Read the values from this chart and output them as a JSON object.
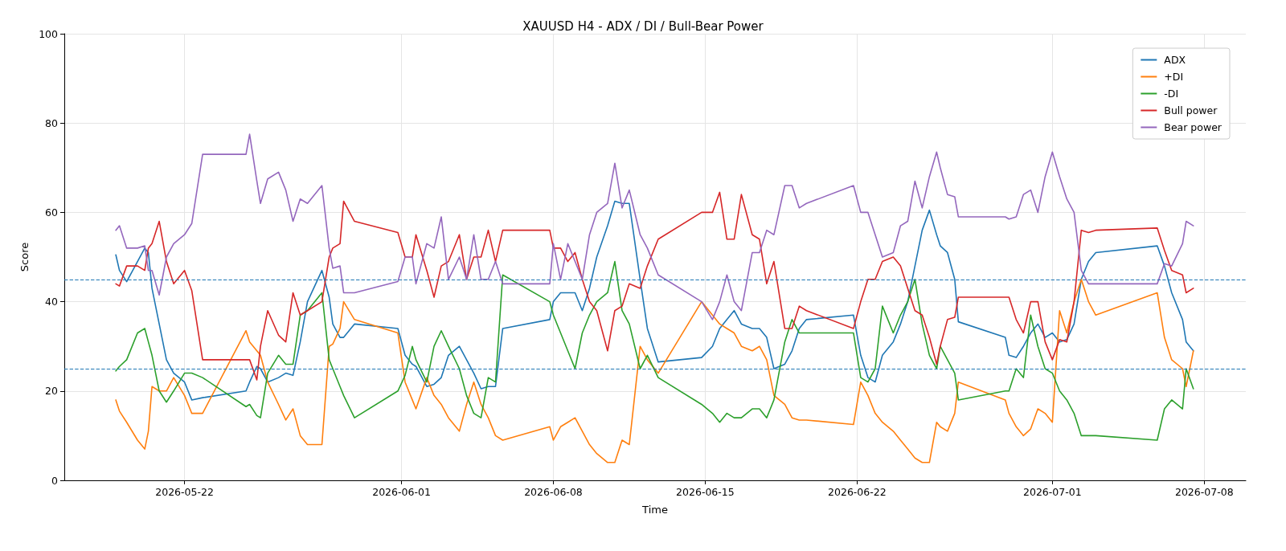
{
  "chart_data": {
    "type": "line",
    "title": "XAUUSD H4 - ADX / DI / Bull-Bear Power",
    "xlabel": "Time",
    "ylabel": "Score",
    "x": [
      "2026-05-18T20:00",
      "2026-05-19T00:00",
      "2026-05-19T08:00",
      "2026-05-19T20:00",
      "2026-05-20T04:00",
      "2026-05-20T08:00",
      "2026-05-20T12:00",
      "2026-05-20T20:00",
      "2026-05-21T04:00",
      "2026-05-21T12:00",
      "2026-05-22T00:00",
      "2026-05-22T08:00",
      "2026-05-22T20:00",
      "2026-05-24T20:00",
      "2026-05-25T00:00",
      "2026-05-25T08:00",
      "2026-05-25T12:00",
      "2026-05-25T20:00",
      "2026-05-26T08:00",
      "2026-05-26T16:00",
      "2026-05-27T00:00",
      "2026-05-27T08:00",
      "2026-05-27T16:00",
      "2026-05-28T08:00",
      "2026-05-28T16:00",
      "2026-05-28T20:00",
      "2026-05-29T04:00",
      "2026-05-29T08:00",
      "2026-05-29T20:00",
      "2026-05-31T20:00",
      "2026-06-01T04:00",
      "2026-06-01T12:00",
      "2026-06-01T16:00",
      "2026-06-02T04:00",
      "2026-06-02T12:00",
      "2026-06-02T20:00",
      "2026-06-03T04:00",
      "2026-06-03T16:00",
      "2026-06-04T00:00",
      "2026-06-04T08:00",
      "2026-06-04T16:00",
      "2026-06-05T00:00",
      "2026-06-05T08:00",
      "2026-06-05T16:00",
      "2026-06-07T20:00",
      "2026-06-08T00:00",
      "2026-06-08T08:00",
      "2026-06-08T16:00",
      "2026-06-09T00:00",
      "2026-06-09T08:00",
      "2026-06-09T16:00",
      "2026-06-10T00:00",
      "2026-06-10T12:00",
      "2026-06-10T20:00",
      "2026-06-11T04:00",
      "2026-06-11T12:00",
      "2026-06-12T00:00",
      "2026-06-12T08:00",
      "2026-06-12T20:00",
      "2026-06-14T20:00",
      "2026-06-15T08:00",
      "2026-06-15T16:00",
      "2026-06-16T00:00",
      "2026-06-16T08:00",
      "2026-06-16T16:00",
      "2026-06-17T04:00",
      "2026-06-17T12:00",
      "2026-06-17T20:00",
      "2026-06-18T04:00",
      "2026-06-18T16:00",
      "2026-06-19T00:00",
      "2026-06-19T08:00",
      "2026-06-19T16:00",
      "2026-06-21T20:00",
      "2026-06-22T04:00",
      "2026-06-22T12:00",
      "2026-06-22T20:00",
      "2026-06-23T04:00",
      "2026-06-23T16:00",
      "2026-06-24T00:00",
      "2026-06-24T08:00",
      "2026-06-24T16:00",
      "2026-06-25T00:00",
      "2026-06-25T08:00",
      "2026-06-25T16:00",
      "2026-06-25T20:00",
      "2026-06-26T04:00",
      "2026-06-26T12:00",
      "2026-06-26T16:00",
      "2026-06-28T20:00",
      "2026-06-29T00:00",
      "2026-06-29T08:00",
      "2026-06-29T16:00",
      "2026-06-30T00:00",
      "2026-06-30T08:00",
      "2026-06-30T16:00",
      "2026-07-01T00:00",
      "2026-07-01T08:00",
      "2026-07-01T16:00",
      "2026-07-02T00:00",
      "2026-07-02T08:00",
      "2026-07-02T16:00",
      "2026-07-03T00:00",
      "2026-07-05T20:00",
      "2026-07-06T04:00",
      "2026-07-06T12:00",
      "2026-07-07T00:00",
      "2026-07-07T04:00",
      "2026-07-07T12:00"
    ],
    "series": [
      {
        "name": "ADX",
        "color": "#1f77b4",
        "values": [
          50.5,
          47,
          44.5,
          49,
          52,
          51,
          43,
          35,
          27,
          24,
          22,
          18,
          18.5,
          20,
          22,
          25.5,
          25,
          22,
          23,
          24,
          23.5,
          31,
          40,
          47,
          41,
          35,
          32,
          32,
          35,
          34,
          28,
          26,
          25.5,
          21,
          21.5,
          23,
          28,
          30,
          27,
          24,
          20.5,
          21,
          21,
          34,
          36,
          40,
          42,
          42,
          42,
          38,
          43,
          50,
          57,
          62.5,
          62,
          62,
          45,
          34,
          26.5,
          27.5,
          30,
          34,
          36,
          38,
          35,
          34,
          34,
          32,
          25,
          26,
          29,
          34,
          36,
          37,
          28,
          23,
          22,
          28,
          31,
          35,
          40,
          48,
          56,
          60.5,
          55,
          52.5,
          51,
          45,
          35.5,
          32,
          28,
          27.5,
          30,
          33,
          35,
          32,
          33,
          31,
          31.5,
          35,
          45,
          49,
          51,
          52.5,
          48,
          42,
          36,
          31,
          29
        ]
      },
      {
        "name": "+DI",
        "color": "#ff7f0e",
        "values": [
          18,
          15.5,
          13,
          9,
          7,
          11,
          21,
          20,
          20,
          23,
          19,
          15,
          15,
          33.5,
          31,
          29,
          28,
          22,
          17,
          13.5,
          16,
          10,
          8,
          8,
          30,
          30.5,
          34,
          40,
          36,
          33,
          22,
          18,
          16,
          23,
          19,
          17,
          14,
          11,
          17,
          22,
          17,
          14,
          10,
          9,
          12,
          9,
          12,
          13,
          14,
          11,
          8,
          6,
          4,
          4,
          9,
          8,
          30,
          27,
          24,
          40,
          37,
          35,
          34,
          33,
          30,
          29,
          30,
          27,
          19,
          17,
          14,
          13.5,
          13.5,
          12.5,
          22,
          19,
          15,
          13,
          11,
          9,
          7,
          5,
          4,
          4,
          13,
          12,
          11,
          15,
          22,
          18,
          15,
          12,
          10,
          11.5,
          16,
          15,
          13,
          38,
          33,
          40,
          45,
          40,
          37,
          42,
          32,
          27,
          25,
          21,
          29
        ]
      },
      {
        "name": "-DI",
        "color": "#2ca02c",
        "values": [
          24.5,
          25.5,
          27,
          33,
          34,
          31,
          28,
          20,
          17.5,
          20,
          24,
          24,
          23,
          16.5,
          17,
          14.5,
          14,
          24,
          28,
          26,
          26,
          37,
          38,
          42,
          27,
          25,
          21,
          19,
          14,
          20,
          23.5,
          30,
          27,
          22,
          30,
          33.5,
          30,
          25,
          19,
          15,
          14,
          23,
          22,
          46,
          40,
          37,
          33,
          29,
          25,
          33,
          37,
          40,
          42,
          49,
          38,
          35,
          25,
          28,
          23,
          17,
          15,
          13,
          15,
          14,
          14,
          16,
          16,
          14,
          18,
          31,
          36,
          33,
          33,
          33,
          23,
          22,
          25,
          39,
          33,
          37,
          40,
          45,
          35,
          28,
          25,
          30,
          27,
          24,
          18,
          20,
          20,
          25,
          23,
          37,
          30,
          25,
          24,
          20,
          18,
          15,
          10,
          10,
          10,
          9,
          16,
          18,
          16,
          25,
          20.5
        ]
      },
      {
        "name": "Bull power",
        "color": "#d62728",
        "values": [
          44,
          43.5,
          48,
          48,
          47,
          52,
          53,
          58,
          49,
          44,
          47,
          42.5,
          27,
          27,
          27,
          22.5,
          30,
          38,
          32.5,
          31,
          42,
          37,
          38,
          40,
          50,
          52,
          53,
          62.5,
          58,
          55.5,
          50,
          50,
          55,
          47,
          41,
          48,
          49,
          55,
          45,
          50,
          50,
          56,
          49,
          56,
          56,
          52,
          52,
          49,
          51,
          45,
          40,
          38,
          29,
          38,
          39,
          44,
          43,
          48,
          54,
          60,
          60,
          64.5,
          54,
          54,
          64,
          55,
          54,
          44,
          49,
          34,
          34,
          39,
          38,
          34,
          40,
          45,
          45,
          49,
          50,
          48,
          43,
          38,
          37,
          32,
          26,
          30,
          36,
          36.5,
          41,
          41,
          41,
          36,
          33,
          40,
          40,
          31,
          27,
          31.5,
          31,
          40,
          56,
          55.5,
          56,
          56.5,
          51.5,
          47,
          46,
          42,
          43
        ]
      },
      {
        "name": "Bear power",
        "color": "#9467bd",
        "values": [
          56,
          57,
          52,
          52,
          52.5,
          47,
          47,
          41.5,
          50,
          53,
          55,
          57.5,
          73,
          73,
          77.5,
          67,
          62,
          67.5,
          69,
          65,
          58,
          63,
          62,
          66,
          52,
          47.5,
          48,
          42,
          42,
          44.5,
          50,
          50,
          44,
          53,
          52,
          59,
          45,
          50,
          45,
          55,
          45,
          45,
          49,
          44,
          44,
          53,
          45,
          53,
          49,
          45,
          55,
          60,
          62,
          71,
          61,
          65,
          55,
          52,
          46,
          40,
          36,
          40,
          46,
          40,
          38,
          51,
          51,
          56,
          55,
          66,
          66,
          61,
          62,
          66,
          60,
          60,
          55,
          50,
          51,
          57,
          58,
          67,
          61,
          68,
          73.5,
          70,
          64,
          63.5,
          59,
          59,
          58.5,
          59,
          64,
          65,
          60,
          68,
          73.5,
          68,
          63,
          60,
          47,
          44,
          44,
          44,
          48.5,
          48,
          53,
          58,
          57
        ]
      }
    ],
    "xlim": [
      "2026-05-16T11:00",
      "2026-07-09T22:00"
    ],
    "xticks": [
      "2026-05-22",
      "2026-06-01",
      "2026-06-08",
      "2026-06-15",
      "2026-06-22",
      "2026-07-01",
      "2026-07-08"
    ],
    "ylim": [
      0,
      100
    ],
    "yticks": [
      0,
      20,
      40,
      60,
      80,
      100
    ],
    "ref_lines": [
      {
        "axis": "y",
        "value": 45,
        "color": "#1f77b4",
        "line_style": "dashed"
      },
      {
        "axis": "y",
        "value": 25,
        "color": "#1f77b4",
        "line_style": "dashed"
      }
    ],
    "grid": true,
    "legend": "top right"
  }
}
